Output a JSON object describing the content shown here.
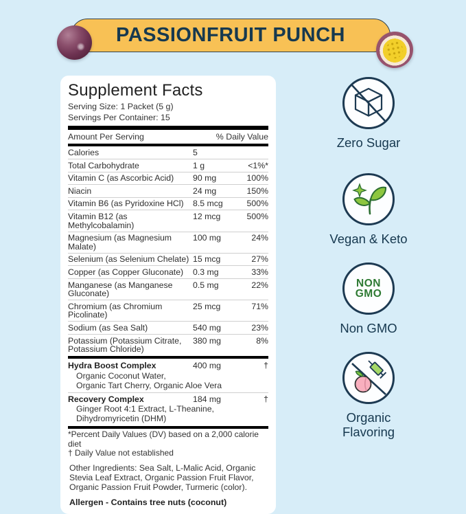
{
  "banner": {
    "title": "PASSIONFRUIT PUNCH"
  },
  "panel": {
    "title": "Supplement Facts",
    "serving_size": "Serving Size: 1 Packet (5 g)",
    "servings_per_container": "Servings Per Container: 15",
    "columns": {
      "amount": "Amount Per Serving",
      "dv": "% Daily Value"
    },
    "rows": [
      {
        "name": "Calories",
        "amount": "5",
        "dv": ""
      },
      {
        "name": "Total Carbohydrate",
        "amount": "1 g",
        "dv": "<1%*"
      },
      {
        "name": "Vitamin C (as Ascorbic Acid)",
        "amount": "90 mg",
        "dv": "100%"
      },
      {
        "name": "Niacin",
        "amount": "24 mg",
        "dv": "150%"
      },
      {
        "name": "Vitamin B6  (as Pyridoxine HCl)",
        "amount": "8.5 mcg",
        "dv": "500%"
      },
      {
        "name": "Vitamin B12 (as Methylcobalamin)",
        "amount": "12 mcg",
        "dv": "500%"
      },
      {
        "name": "Magnesium (as Magnesium Malate)",
        "amount": "100 mg",
        "dv": "24%"
      },
      {
        "name": "Selenium (as Selenium Chelate)",
        "amount": "15 mcg",
        "dv": "27%"
      },
      {
        "name": "Copper (as Copper Gluconate)",
        "amount": "0.3 mg",
        "dv": "33%"
      },
      {
        "name": "Manganese (as Manganese Gluconate)",
        "amount": "0.5 mg",
        "dv": "22%"
      },
      {
        "name": "Chromium (as Chromium Picolinate)",
        "amount": "25 mcg",
        "dv": "71%"
      },
      {
        "name": "Sodium (as Sea Salt)",
        "amount": "540 mg",
        "dv": "23%"
      },
      {
        "name": "Potassium (Potassium Citrate, Potassium Chloride)",
        "amount": "380 mg",
        "dv": "8%"
      }
    ],
    "complexes": [
      {
        "name": "Hydra Boost Complex",
        "amount": "400 mg",
        "dv": "†",
        "ingredients": [
          "Organic Coconut Water,",
          "Organic Tart Cherry, Organic Aloe Vera"
        ]
      },
      {
        "name": "Recovery Complex",
        "amount": "184 mg",
        "dv": "†",
        "ingredients": [
          "Ginger Root 4:1 Extract, L-Theanine,",
          "Dihydromyricetin (DHM)"
        ]
      }
    ],
    "footnotes": [
      "*Percent Daily Values (DV) based on a 2,000 calorie diet",
      "† Daily Value not established"
    ],
    "other_ingredients": "Other Ingredients:  Sea Salt, L-Malic Acid, Organic Stevia Leaf Extract, Organic Passion Fruit Flavor, Organic Passion Fruit Powder, Turmeric (color).",
    "allergen": "Allergen - Contains tree nuts (coconut)"
  },
  "badges": [
    {
      "icon": "no-sugar-cube-icon",
      "label": "Zero Sugar"
    },
    {
      "icon": "sprout-icon",
      "label": "Vegan & Keto"
    },
    {
      "icon": "non-gmo-icon",
      "label": "Non GMO",
      "icon_text": "NON GMO"
    },
    {
      "icon": "no-artificial-flavor-icon",
      "label": "Organic Flavoring"
    }
  ],
  "colors": {
    "background": "#D7EDF8",
    "banner_yellow": "#F8C155",
    "navy_text": "#17394F",
    "panel_white": "#FFFFFF",
    "leaf_green": "#8DC63F",
    "gmo_green": "#2E7A33",
    "peach_pink": "#F9AFBE"
  }
}
